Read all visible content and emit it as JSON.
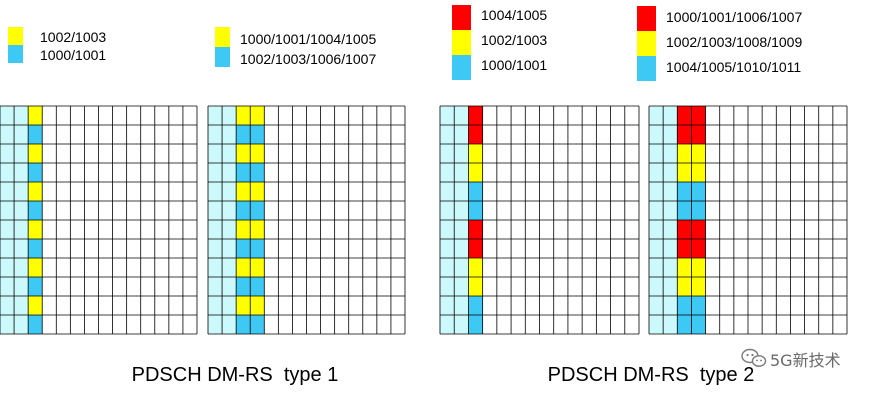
{
  "colors": {
    "red": "#ff0000",
    "yellow": "#ffff00",
    "blue": "#3ec8f4",
    "lightcyan": "#ccf9fb",
    "white": "#ffffff",
    "gridline": "#000000"
  },
  "legends": [
    {
      "items": [
        {
          "label": "1002/1003",
          "color": "yellow"
        },
        {
          "label": "1000/1001",
          "color": "blue"
        }
      ]
    },
    {
      "items": [
        {
          "label": "1000/1001/1004/1005",
          "color": "yellow"
        },
        {
          "label": "1002/1003/1006/1007",
          "color": "blue"
        }
      ]
    },
    {
      "items": [
        {
          "label": "1004/1005",
          "color": "red"
        },
        {
          "label": "1002/1003",
          "color": "yellow"
        },
        {
          "label": "1000/1001",
          "color": "blue"
        }
      ]
    },
    {
      "items": [
        {
          "label": "1000/1001/1006/1007",
          "color": "red"
        },
        {
          "label": "1002/1003/1008/1009",
          "color": "yellow"
        },
        {
          "label": "1004/1005/1010/1011",
          "color": "blue"
        }
      ]
    }
  ],
  "grids": [
    {
      "name": "type1-single-symbol",
      "columns": [
        {
          "index": 0,
          "pattern": [
            "lightcyan"
          ]
        },
        {
          "index": 1,
          "pattern": [
            "lightcyan"
          ]
        },
        {
          "index": 2,
          "pattern": [
            "yellow",
            "blue"
          ]
        }
      ]
    },
    {
      "name": "type1-double-symbol",
      "columns": [
        {
          "index": 0,
          "pattern": [
            "lightcyan"
          ]
        },
        {
          "index": 1,
          "pattern": [
            "lightcyan"
          ]
        },
        {
          "index": 2,
          "pattern": [
            "yellow",
            "blue"
          ]
        },
        {
          "index": 3,
          "pattern": [
            "yellow",
            "blue"
          ]
        }
      ]
    },
    {
      "name": "type2-single-symbol",
      "columns": [
        {
          "index": 0,
          "pattern": [
            "lightcyan"
          ]
        },
        {
          "index": 1,
          "pattern": [
            "lightcyan"
          ]
        },
        {
          "index": 2,
          "pattern": [
            "red",
            "red",
            "yellow",
            "yellow",
            "blue",
            "blue"
          ]
        }
      ]
    },
    {
      "name": "type2-double-symbol",
      "columns": [
        {
          "index": 0,
          "pattern": [
            "lightcyan"
          ]
        },
        {
          "index": 1,
          "pattern": [
            "lightcyan"
          ]
        },
        {
          "index": 2,
          "pattern": [
            "red",
            "red",
            "yellow",
            "yellow",
            "blue",
            "blue"
          ]
        },
        {
          "index": 3,
          "pattern": [
            "red",
            "red",
            "yellow",
            "yellow",
            "blue",
            "blue"
          ]
        }
      ]
    }
  ],
  "grid_rows": 12,
  "grid_cols": 14,
  "captions": {
    "type1": "PDSCH DM-RS  type 1",
    "type2": "PDSCH DM-RS  type 2"
  },
  "watermark": {
    "text": "5G新技术",
    "icon": "wechat-icon"
  }
}
